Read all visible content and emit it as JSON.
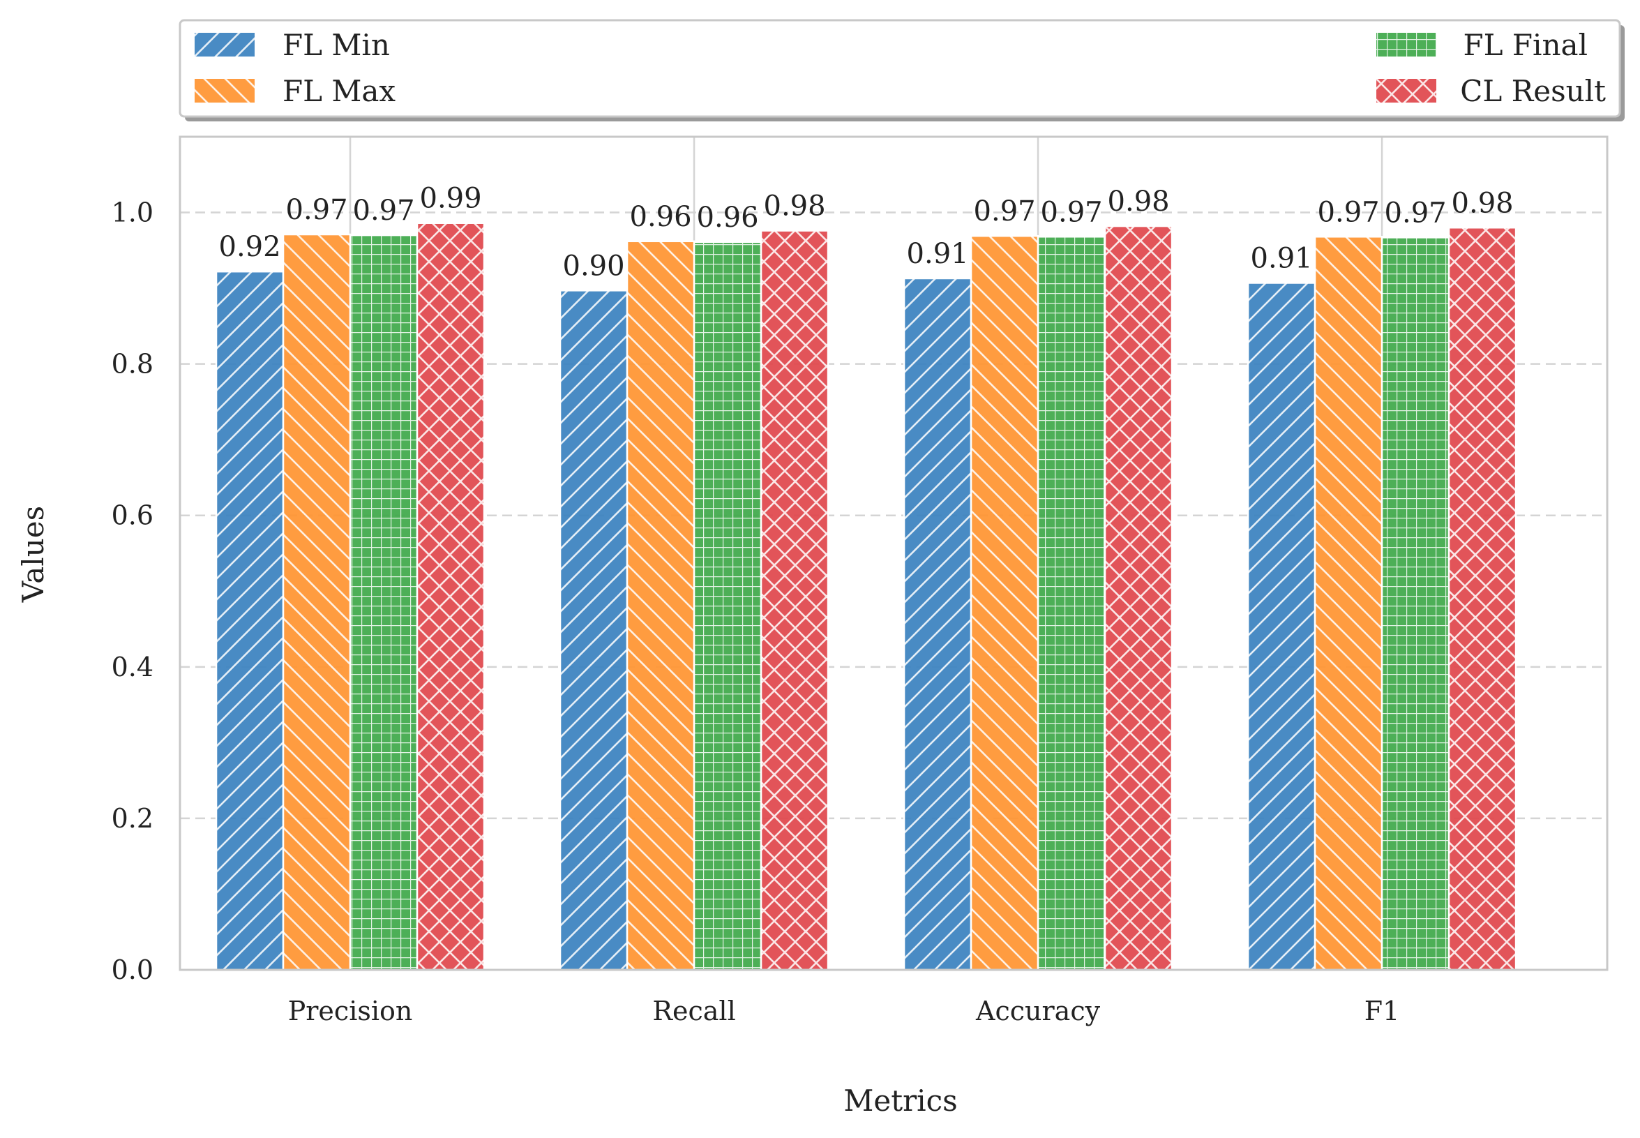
{
  "chart_data": {
    "type": "bar",
    "xlabel": "Metrics",
    "ylabel": "Values",
    "categories": [
      "Precision",
      "Recall",
      "Accuracy",
      "F1"
    ],
    "ylim": [
      0,
      1.1
    ],
    "yticks": [
      "0.0",
      "0.2",
      "0.4",
      "0.6",
      "0.8",
      "1.0"
    ],
    "grid": "horizontal dashed",
    "legend_position": "top",
    "series": [
      {
        "name": "FL Min",
        "color": "#3b82bf",
        "pattern": "diagonal-forward",
        "values": [
          0.922,
          0.897,
          0.913,
          0.907
        ],
        "labels": [
          "0.92",
          "0.90",
          "0.91",
          "0.91"
        ]
      },
      {
        "name": "FL Max",
        "color": "#ff9432",
        "pattern": "diagonal-backward",
        "values": [
          0.971,
          0.962,
          0.969,
          0.968
        ],
        "labels": [
          "0.97",
          "0.96",
          "0.97",
          "0.97"
        ]
      },
      {
        "name": "FL Final",
        "color": "#40a94a",
        "pattern": "grid",
        "values": [
          0.97,
          0.961,
          0.968,
          0.967
        ],
        "labels": [
          "0.97",
          "0.96",
          "0.97",
          "0.97"
        ]
      },
      {
        "name": "CL Result",
        "color": "#e0474c",
        "pattern": "crosshatch",
        "values": [
          0.986,
          0.976,
          0.982,
          0.98
        ],
        "labels": [
          "0.99",
          "0.98",
          "0.98",
          "0.98"
        ]
      }
    ]
  }
}
